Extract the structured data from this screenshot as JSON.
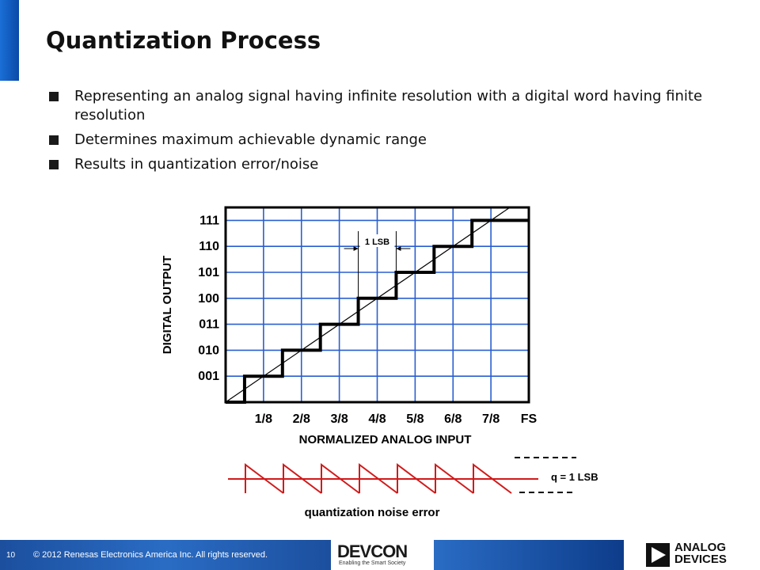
{
  "slide": {
    "title": "Quantization Process",
    "bullets": [
      "Representing an analog signal having infinite resolution with a digital word having finite resolution",
      "Determines maximum achievable dynamic range",
      "Results in quantization error/noise"
    ]
  },
  "chart_data": {
    "type": "line",
    "ylabel": "DIGITAL OUTPUT",
    "xlabel": "NORMALIZED ANALOG INPUT",
    "x_tick_labels": [
      "1/8",
      "2/8",
      "3/8",
      "4/8",
      "5/8",
      "6/8",
      "7/8",
      "FS"
    ],
    "y_tick_labels": [
      "001",
      "010",
      "011",
      "100",
      "101",
      "110",
      "111"
    ],
    "xlim": [
      0,
      1
    ],
    "ylim": [
      0,
      7.5
    ],
    "grid": true,
    "series": [
      {
        "x": [
          0,
          0.0625,
          0.0625,
          0.1875,
          0.1875,
          0.3125,
          0.3125,
          0.4375,
          0.4375,
          0.5625,
          0.5625,
          0.6875,
          0.6875,
          0.8125,
          0.8125,
          0.9375,
          0.9375,
          1.0
        ],
        "y": [
          0,
          0,
          1,
          1,
          2,
          2,
          3,
          3,
          4,
          4,
          5,
          5,
          6,
          6,
          7,
          7,
          7,
          7
        ]
      },
      {
        "x": [
          0,
          1
        ],
        "y": [
          0,
          8
        ]
      }
    ],
    "annotations": {
      "lsb_label": "1 LSB",
      "lsb_x": [
        0.4375,
        0.5625
      ],
      "noise_label": "quantization noise error",
      "q_label": "q = 1 LSB",
      "noise_teeth": 7
    }
  },
  "footer": {
    "page_number": "10",
    "copyright": "© 2012 Renesas Electronics America Inc. All rights reserved.",
    "devcon_logo": "DEVCON",
    "devcon_tagline": "Enabling the Smart Society",
    "company_line1": "ANALOG",
    "company_line2": "DEVICES"
  },
  "colors": {
    "accent": "#1a6fd6",
    "grid": "#2a5fd0",
    "noise": "#d11a1a",
    "footer_band": "#2a6cc4"
  }
}
